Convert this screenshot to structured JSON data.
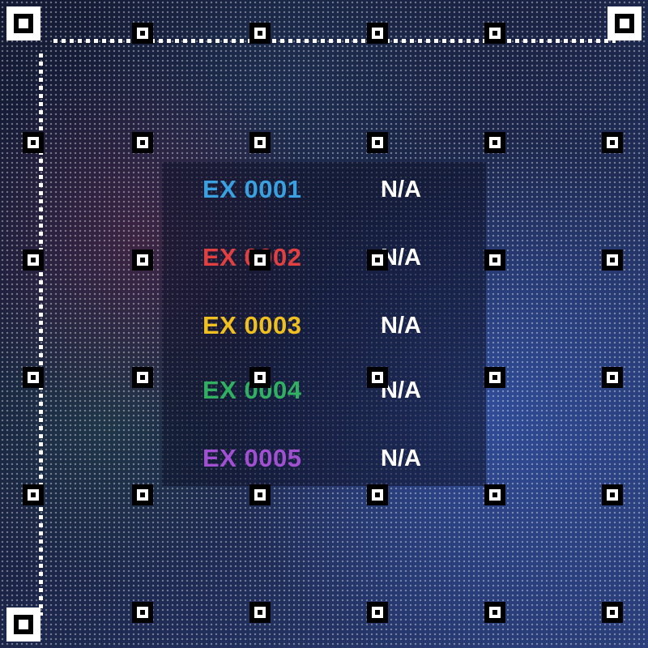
{
  "entries": [
    {
      "code": "EX 0001",
      "value": "N/A",
      "color": "#3aa0e0"
    },
    {
      "code": "EX 0002",
      "value": "N/A",
      "color": "#e04040"
    },
    {
      "code": "EX 0003",
      "value": "N/A",
      "color": "#f0c020"
    },
    {
      "code": "EX 0004",
      "value": "N/A",
      "color": "#30b060"
    },
    {
      "code": "EX 0005",
      "value": "N/A",
      "color": "#a050d0"
    }
  ],
  "colors": {
    "background": "#1b2446",
    "marker_light": "#ffffff",
    "marker_dark": "#000000"
  },
  "icons": {
    "corner_finder": "finder-pattern-icon",
    "alignment_marker": "alignment-marker-icon"
  }
}
